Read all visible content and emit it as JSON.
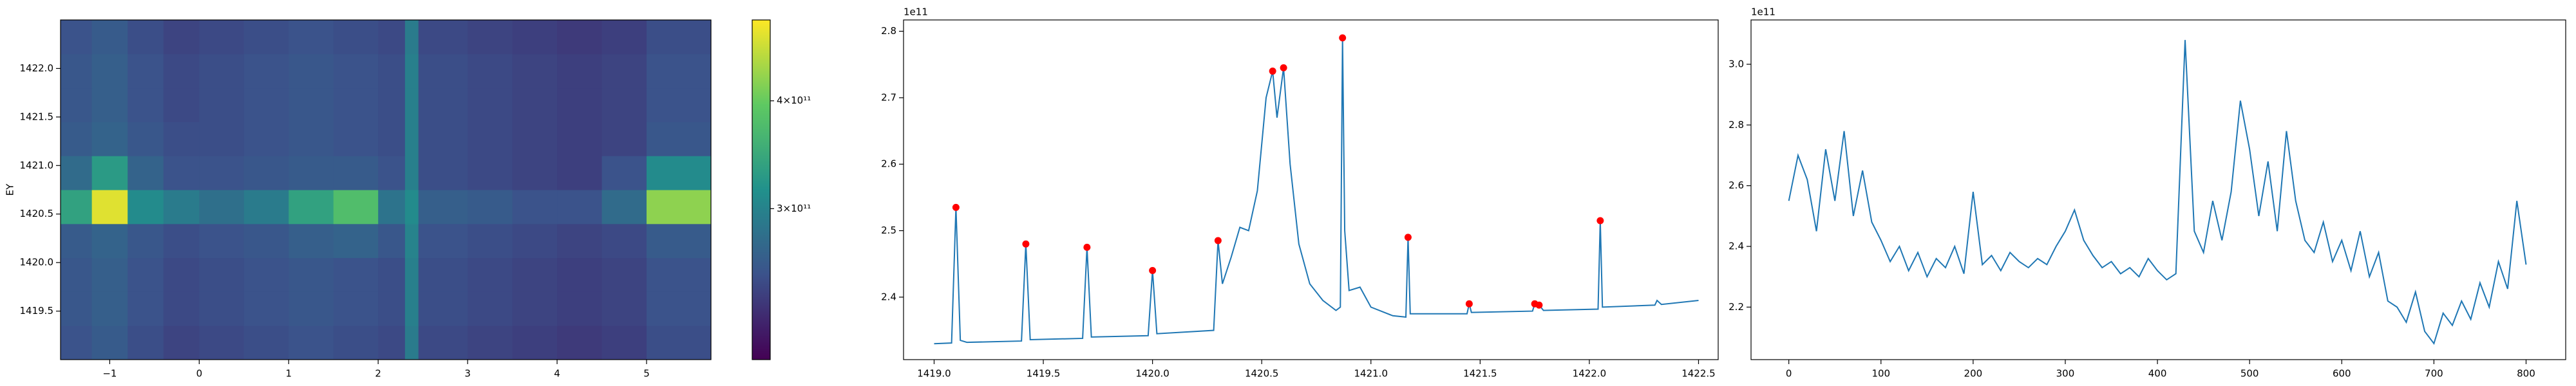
{
  "chart_data": [
    {
      "type": "heatmap",
      "ylabel": "EY",
      "xlim": [
        -1.55,
        5.72
      ],
      "ylim": [
        1419.0,
        1422.5
      ],
      "xticks": [
        {
          "value": -1,
          "label": "−1"
        },
        0,
        1,
        2,
        3,
        4,
        5
      ],
      "yticks": [
        1419.5,
        {
          "value": 1420,
          "label": "1420.0"
        },
        1420.5,
        {
          "value": 1421,
          "label": "1421.0"
        },
        1421.5,
        {
          "value": 1422,
          "label": "1422.0"
        }
      ],
      "xbins": [
        -1.55,
        -1.2,
        -0.8,
        -0.4,
        0,
        0.5,
        1.0,
        1.5,
        2.0,
        2.3,
        2.45,
        3.0,
        3.5,
        4.0,
        4.5,
        5.0,
        5.72
      ],
      "ybins": [
        1419.0,
        1419.35,
        1419.7,
        1420.05,
        1420.4,
        1420.75,
        1421.1,
        1421.45,
        1421.8,
        1422.15,
        1422.5
      ],
      "z": [
        [
          240000000000.0,
          250000000000.0,
          235000000000.0,
          225000000000.0,
          230000000000.0,
          235000000000.0,
          240000000000.0,
          235000000000.0,
          230000000000.0,
          290000000000.0,
          230000000000.0,
          225000000000.0,
          220000000000.0,
          215000000000.0,
          220000000000.0,
          235000000000.0
        ],
        [
          245000000000.0,
          255000000000.0,
          240000000000.0,
          230000000000.0,
          235000000000.0,
          240000000000.0,
          245000000000.0,
          240000000000.0,
          235000000000.0,
          295000000000.0,
          235000000000.0,
          230000000000.0,
          225000000000.0,
          220000000000.0,
          225000000000.0,
          240000000000.0
        ],
        [
          245000000000.0,
          255000000000.0,
          240000000000.0,
          230000000000.0,
          235000000000.0,
          240000000000.0,
          245000000000.0,
          240000000000.0,
          235000000000.0,
          295000000000.0,
          235000000000.0,
          230000000000.0,
          225000000000.0,
          220000000000.0,
          225000000000.0,
          240000000000.0
        ],
        [
          250000000000.0,
          260000000000.0,
          245000000000.0,
          235000000000.0,
          240000000000.0,
          245000000000.0,
          255000000000.0,
          260000000000.0,
          245000000000.0,
          300000000000.0,
          240000000000.0,
          235000000000.0,
          230000000000.0,
          225000000000.0,
          230000000000.0,
          250000000000.0
        ],
        [
          340000000000.0,
          460000000000.0,
          310000000000.0,
          290000000000.0,
          275000000000.0,
          290000000000.0,
          340000000000.0,
          380000000000.0,
          280000000000.0,
          310000000000.0,
          255000000000.0,
          250000000000.0,
          240000000000.0,
          240000000000.0,
          270000000000.0,
          420000000000.0
        ],
        [
          270000000000.0,
          330000000000.0,
          260000000000.0,
          240000000000.0,
          240000000000.0,
          245000000000.0,
          250000000000.0,
          250000000000.0,
          240000000000.0,
          295000000000.0,
          235000000000.0,
          230000000000.0,
          225000000000.0,
          220000000000.0,
          240000000000.0,
          310000000000.0
        ],
        [
          250000000000.0,
          260000000000.0,
          245000000000.0,
          235000000000.0,
          235000000000.0,
          240000000000.0,
          245000000000.0,
          240000000000.0,
          235000000000.0,
          295000000000.0,
          235000000000.0,
          230000000000.0,
          225000000000.0,
          220000000000.0,
          225000000000.0,
          245000000000.0
        ],
        [
          245000000000.0,
          255000000000.0,
          240000000000.0,
          230000000000.0,
          235000000000.0,
          240000000000.0,
          245000000000.0,
          240000000000.0,
          235000000000.0,
          295000000000.0,
          235000000000.0,
          230000000000.0,
          225000000000.0,
          220000000000.0,
          225000000000.0,
          240000000000.0
        ],
        [
          245000000000.0,
          255000000000.0,
          240000000000.0,
          230000000000.0,
          235000000000.0,
          240000000000.0,
          245000000000.0,
          240000000000.0,
          235000000000.0,
          295000000000.0,
          235000000000.0,
          230000000000.0,
          225000000000.0,
          220000000000.0,
          225000000000.0,
          240000000000.0
        ],
        [
          240000000000.0,
          250000000000.0,
          235000000000.0,
          225000000000.0,
          230000000000.0,
          235000000000.0,
          240000000000.0,
          235000000000.0,
          230000000000.0,
          290000000000.0,
          230000000000.0,
          225000000000.0,
          220000000000.0,
          215000000000.0,
          220000000000.0,
          235000000000.0
        ]
      ],
      "clim": [
        160000000000.0,
        475000000000.0
      ],
      "cticks": [
        {
          "value": 300000000000.0,
          "label": "3×10¹¹"
        },
        {
          "value": 400000000000.0,
          "label": "4×10¹¹"
        }
      ]
    },
    {
      "type": "line",
      "offset_label": "1e11",
      "xlim": [
        1418.86,
        1422.59
      ],
      "ylim": [
        2.306,
        2.817
      ],
      "xticks": [
        {
          "value": 1419,
          "label": "1419.0"
        },
        1419.5,
        {
          "value": 1420,
          "label": "1420.0"
        },
        1420.5,
        {
          "value": 1421,
          "label": "1421.0"
        },
        1421.5,
        {
          "value": 1422,
          "label": "1422.0"
        },
        1422.5
      ],
      "yticks": [
        2.4,
        2.5,
        2.6,
        2.7,
        2.8
      ],
      "line": {
        "color": "#1f77b4",
        "x": [
          1419.0,
          1419.08,
          1419.1,
          1419.12,
          1419.15,
          1419.4,
          1419.42,
          1419.44,
          1419.68,
          1419.7,
          1419.72,
          1419.98,
          1420.0,
          1420.02,
          1420.28,
          1420.3,
          1420.32,
          1420.36,
          1420.4,
          1420.44,
          1420.48,
          1420.52,
          1420.55,
          1420.57,
          1420.6,
          1420.63,
          1420.67,
          1420.72,
          1420.78,
          1420.84,
          1420.86,
          1420.87,
          1420.88,
          1420.9,
          1420.95,
          1421.0,
          1421.1,
          1421.16,
          1421.17,
          1421.18,
          1421.44,
          1421.45,
          1421.46,
          1421.74,
          1421.75,
          1421.77,
          1421.79,
          1422.04,
          1422.05,
          1422.06,
          1422.3,
          1422.31,
          1422.33,
          1422.5
        ],
        "values": [
          2.33,
          2.331,
          2.535,
          2.335,
          2.332,
          2.334,
          2.48,
          2.336,
          2.338,
          2.475,
          2.34,
          2.342,
          2.44,
          2.345,
          2.35,
          2.485,
          2.42,
          2.46,
          2.505,
          2.5,
          2.56,
          2.7,
          2.74,
          2.67,
          2.745,
          2.6,
          2.48,
          2.42,
          2.395,
          2.38,
          2.385,
          2.79,
          2.5,
          2.41,
          2.415,
          2.385,
          2.372,
          2.37,
          2.49,
          2.375,
          2.375,
          2.39,
          2.377,
          2.379,
          2.39,
          2.388,
          2.38,
          2.382,
          2.515,
          2.385,
          2.388,
          2.395,
          2.389,
          2.395
        ]
      },
      "peaks": {
        "color": "#ff0000",
        "x": [
          1419.1,
          1419.42,
          1419.7,
          1420.0,
          1420.3,
          1420.55,
          1420.6,
          1420.87,
          1421.17,
          1421.45,
          1421.75,
          1421.77,
          1422.05
        ],
        "values": [
          2.535,
          2.48,
          2.475,
          2.44,
          2.485,
          2.74,
          2.745,
          2.79,
          2.49,
          2.39,
          2.39,
          2.388,
          2.515
        ]
      }
    },
    {
      "type": "line",
      "offset_label": "1e11",
      "xlim": [
        -41,
        843
      ],
      "ylim": [
        2.027,
        3.146
      ],
      "xticks": [
        0,
        100,
        200,
        300,
        400,
        500,
        600,
        700,
        800
      ],
      "yticks": [
        2.2,
        2.4,
        2.6,
        2.8,
        {
          "value": 3,
          "label": "3.0"
        }
      ],
      "line": {
        "color": "#1f77b4",
        "x": [
          0,
          10,
          20,
          30,
          40,
          50,
          60,
          70,
          80,
          90,
          100,
          110,
          120,
          130,
          140,
          150,
          160,
          170,
          180,
          190,
          200,
          210,
          220,
          230,
          240,
          250,
          260,
          270,
          280,
          290,
          300,
          310,
          320,
          330,
          340,
          350,
          360,
          370,
          380,
          390,
          400,
          410,
          420,
          430,
          440,
          450,
          460,
          470,
          480,
          490,
          500,
          510,
          520,
          530,
          540,
          550,
          560,
          570,
          580,
          590,
          600,
          610,
          620,
          630,
          640,
          650,
          660,
          670,
          680,
          690,
          700,
          710,
          720,
          730,
          740,
          750,
          760,
          770,
          780,
          790,
          800
        ],
        "values": [
          2.55,
          2.7,
          2.62,
          2.45,
          2.72,
          2.55,
          2.78,
          2.5,
          2.65,
          2.48,
          2.42,
          2.35,
          2.4,
          2.32,
          2.38,
          2.3,
          2.36,
          2.33,
          2.4,
          2.31,
          2.58,
          2.34,
          2.37,
          2.32,
          2.38,
          2.35,
          2.33,
          2.36,
          2.34,
          2.4,
          2.45,
          2.52,
          2.42,
          2.37,
          2.33,
          2.35,
          2.31,
          2.33,
          2.3,
          2.36,
          2.32,
          2.29,
          2.31,
          3.08,
          2.45,
          2.38,
          2.55,
          2.42,
          2.58,
          2.88,
          2.72,
          2.5,
          2.68,
          2.45,
          2.78,
          2.55,
          2.42,
          2.38,
          2.48,
          2.35,
          2.42,
          2.32,
          2.45,
          2.3,
          2.38,
          2.22,
          2.2,
          2.15,
          2.25,
          2.12,
          2.08,
          2.18,
          2.14,
          2.22,
          2.16,
          2.28,
          2.2,
          2.35,
          2.26,
          2.55,
          2.34
        ]
      }
    }
  ]
}
